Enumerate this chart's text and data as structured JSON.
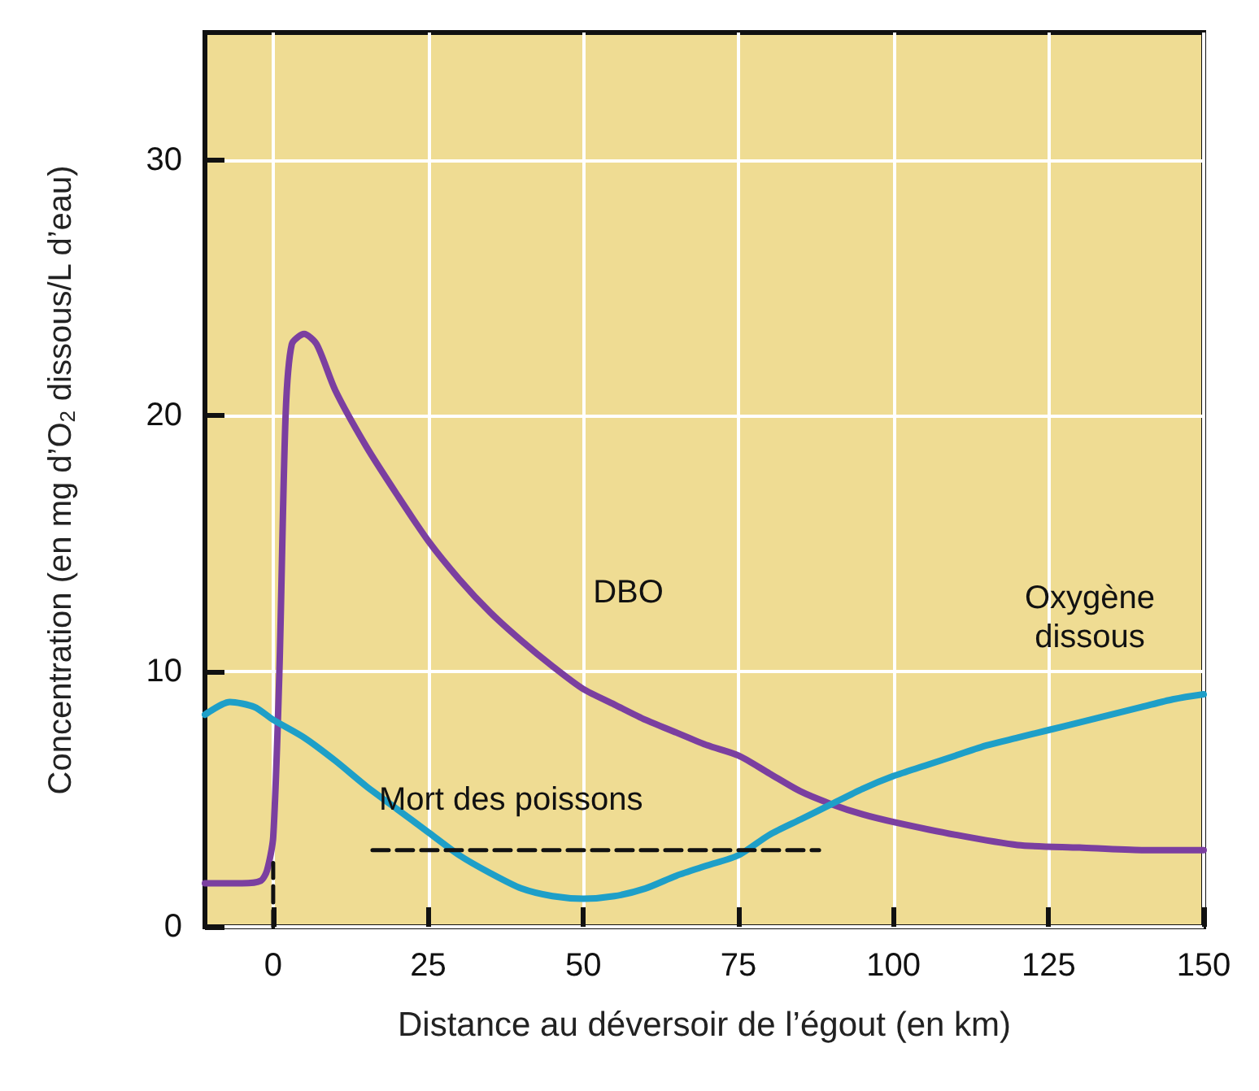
{
  "chart_data": {
    "type": "line",
    "xlabel": "Distance au déversoir de l’égout (en km)",
    "ylabel": "Concentration (en mg d’O$_{2}$ dissous/L d’eau)",
    "xlim": [
      -11,
      150
    ],
    "ylim": [
      0,
      35
    ],
    "xticks": [
      0,
      25,
      50,
      75,
      100,
      125,
      150
    ],
    "yticks": [
      0,
      10,
      20,
      30
    ],
    "grid": true,
    "marker": "none",
    "series": [
      {
        "name": "DBO",
        "color": "#7b3fa0",
        "line_style": "solid",
        "x": [
          -11,
          -5,
          -2,
          -1,
          0,
          1,
          2,
          3,
          5,
          7,
          10,
          15,
          20,
          25,
          30,
          35,
          40,
          45,
          50,
          55,
          60,
          65,
          70,
          75,
          80,
          85,
          90,
          95,
          100,
          110,
          120,
          130,
          140,
          150
        ],
        "values": [
          1.7,
          1.7,
          1.8,
          2.2,
          3.5,
          10,
          20,
          22.8,
          23.2,
          22.8,
          21,
          18.8,
          16.9,
          15.1,
          13.6,
          12.3,
          11.2,
          10.2,
          9.3,
          8.7,
          8.1,
          7.6,
          7.1,
          6.7,
          6,
          5.3,
          4.8,
          4.4,
          4.1,
          3.6,
          3.2,
          3.1,
          3,
          3
        ]
      },
      {
        "name": "Oxygène\ndissous",
        "color": "#1e9fc8",
        "line_style": "solid",
        "x": [
          -11,
          -7,
          -3,
          0,
          5,
          10,
          15,
          20,
          25,
          30,
          35,
          40,
          45,
          50,
          55,
          60,
          65,
          70,
          75,
          80,
          85,
          90,
          95,
          100,
          105,
          110,
          115,
          120,
          125,
          130,
          135,
          140,
          145,
          150
        ],
        "values": [
          8.3,
          8.8,
          8.6,
          8.1,
          7.4,
          6.5,
          5.5,
          4.6,
          3.7,
          2.8,
          2.1,
          1.5,
          1.2,
          1.1,
          1.2,
          1.5,
          2,
          2.4,
          2.8,
          3.6,
          4.2,
          4.8,
          5.4,
          5.9,
          6.3,
          6.7,
          7.1,
          7.4,
          7.7,
          8,
          8.3,
          8.6,
          8.9,
          9.1
        ]
      },
      {
        "name": "Mort des poissons",
        "color": "#111111",
        "line_style": "dashed",
        "x": [
          16,
          88
        ],
        "values": [
          3,
          3
        ]
      },
      {
        "color": "#111111",
        "line_style": "dashed",
        "x": [
          0,
          0
        ],
        "values": [
          0,
          2.5
        ]
      }
    ]
  }
}
